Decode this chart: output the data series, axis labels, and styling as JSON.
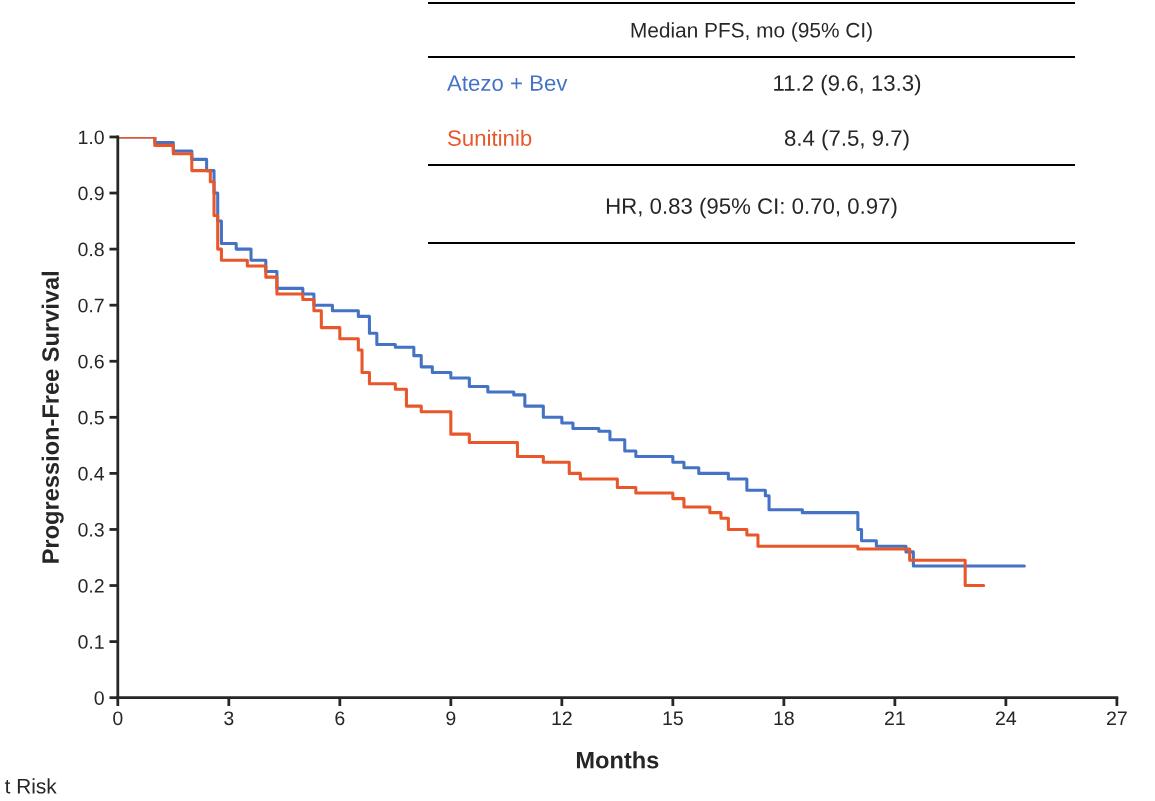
{
  "chart_data": {
    "type": "step",
    "xlabel": "Months",
    "ylabel": "Progression-Free Survival",
    "xlim": [
      0,
      27
    ],
    "xticks": [
      0,
      3,
      6,
      9,
      12,
      15,
      18,
      21,
      24,
      27
    ],
    "ylim": [
      0,
      1.0
    ],
    "yticks": [
      0,
      0.1,
      0.2,
      0.3,
      0.4,
      0.5,
      0.6,
      0.7,
      0.8,
      0.9,
      {
        "value": 1.0,
        "label": "1.0"
      }
    ],
    "grid": false,
    "legend": false,
    "series": [
      {
        "name": "Atezo + Bev",
        "color": "#4472c4",
        "x": [
          0,
          1,
          1.5,
          2,
          2.4,
          2.6,
          2.7,
          2.8,
          3.2,
          3.6,
          4,
          4.3,
          5,
          5.3,
          5.8,
          6.5,
          6.8,
          7,
          7.5,
          8,
          8.2,
          8.5,
          9,
          9.5,
          10,
          10.7,
          11,
          11.5,
          12,
          12.3,
          13,
          13.3,
          13.7,
          14,
          15,
          15.3,
          15.7,
          16.5,
          17,
          17.5,
          17.6,
          18.5,
          20.0,
          20.1,
          20.5,
          21.3,
          21.5,
          24.5
        ],
        "values": [
          1.0,
          0.99,
          0.975,
          0.96,
          0.94,
          0.9,
          0.85,
          0.81,
          0.8,
          0.78,
          0.76,
          0.73,
          0.72,
          0.7,
          0.69,
          0.68,
          0.65,
          0.63,
          0.625,
          0.61,
          0.59,
          0.58,
          0.57,
          0.555,
          0.545,
          0.54,
          0.52,
          0.5,
          0.49,
          0.48,
          0.475,
          0.46,
          0.44,
          0.43,
          0.42,
          0.41,
          0.4,
          0.39,
          0.37,
          0.36,
          0.335,
          0.33,
          0.3,
          0.28,
          0.27,
          0.26,
          0.235,
          0.235
        ]
      },
      {
        "name": "Sunitinib",
        "color": "#e8562a",
        "x": [
          0,
          1,
          1.5,
          2,
          2.5,
          2.6,
          2.7,
          2.8,
          3.5,
          4,
          4.3,
          5,
          5.3,
          5.5,
          6,
          6.5,
          6.6,
          6.8,
          7.5,
          7.8,
          8.2,
          9,
          9.5,
          10.8,
          11.5,
          12.2,
          12.5,
          13.5,
          14,
          15,
          15.3,
          16,
          16.3,
          16.5,
          17,
          17.3,
          20,
          21.4,
          22.9,
          23.4
        ],
        "values": [
          1.0,
          0.985,
          0.97,
          0.94,
          0.92,
          0.86,
          0.8,
          0.78,
          0.77,
          0.75,
          0.72,
          0.71,
          0.69,
          0.66,
          0.64,
          0.62,
          0.58,
          0.56,
          0.55,
          0.52,
          0.51,
          0.47,
          0.455,
          0.43,
          0.42,
          0.4,
          0.39,
          0.375,
          0.365,
          0.355,
          0.34,
          0.33,
          0.32,
          0.3,
          0.29,
          0.27,
          0.265,
          0.245,
          0.2,
          0.2
        ]
      }
    ],
    "annotations": [
      "Median PFS, mo (95% CI)",
      "11.2 (9.6, 13.3)",
      "8.4 (7.5, 9.7)",
      "HR, 0.83 (95% CI: 0.70, 0.97)",
      "t Risk"
    ]
  }
}
